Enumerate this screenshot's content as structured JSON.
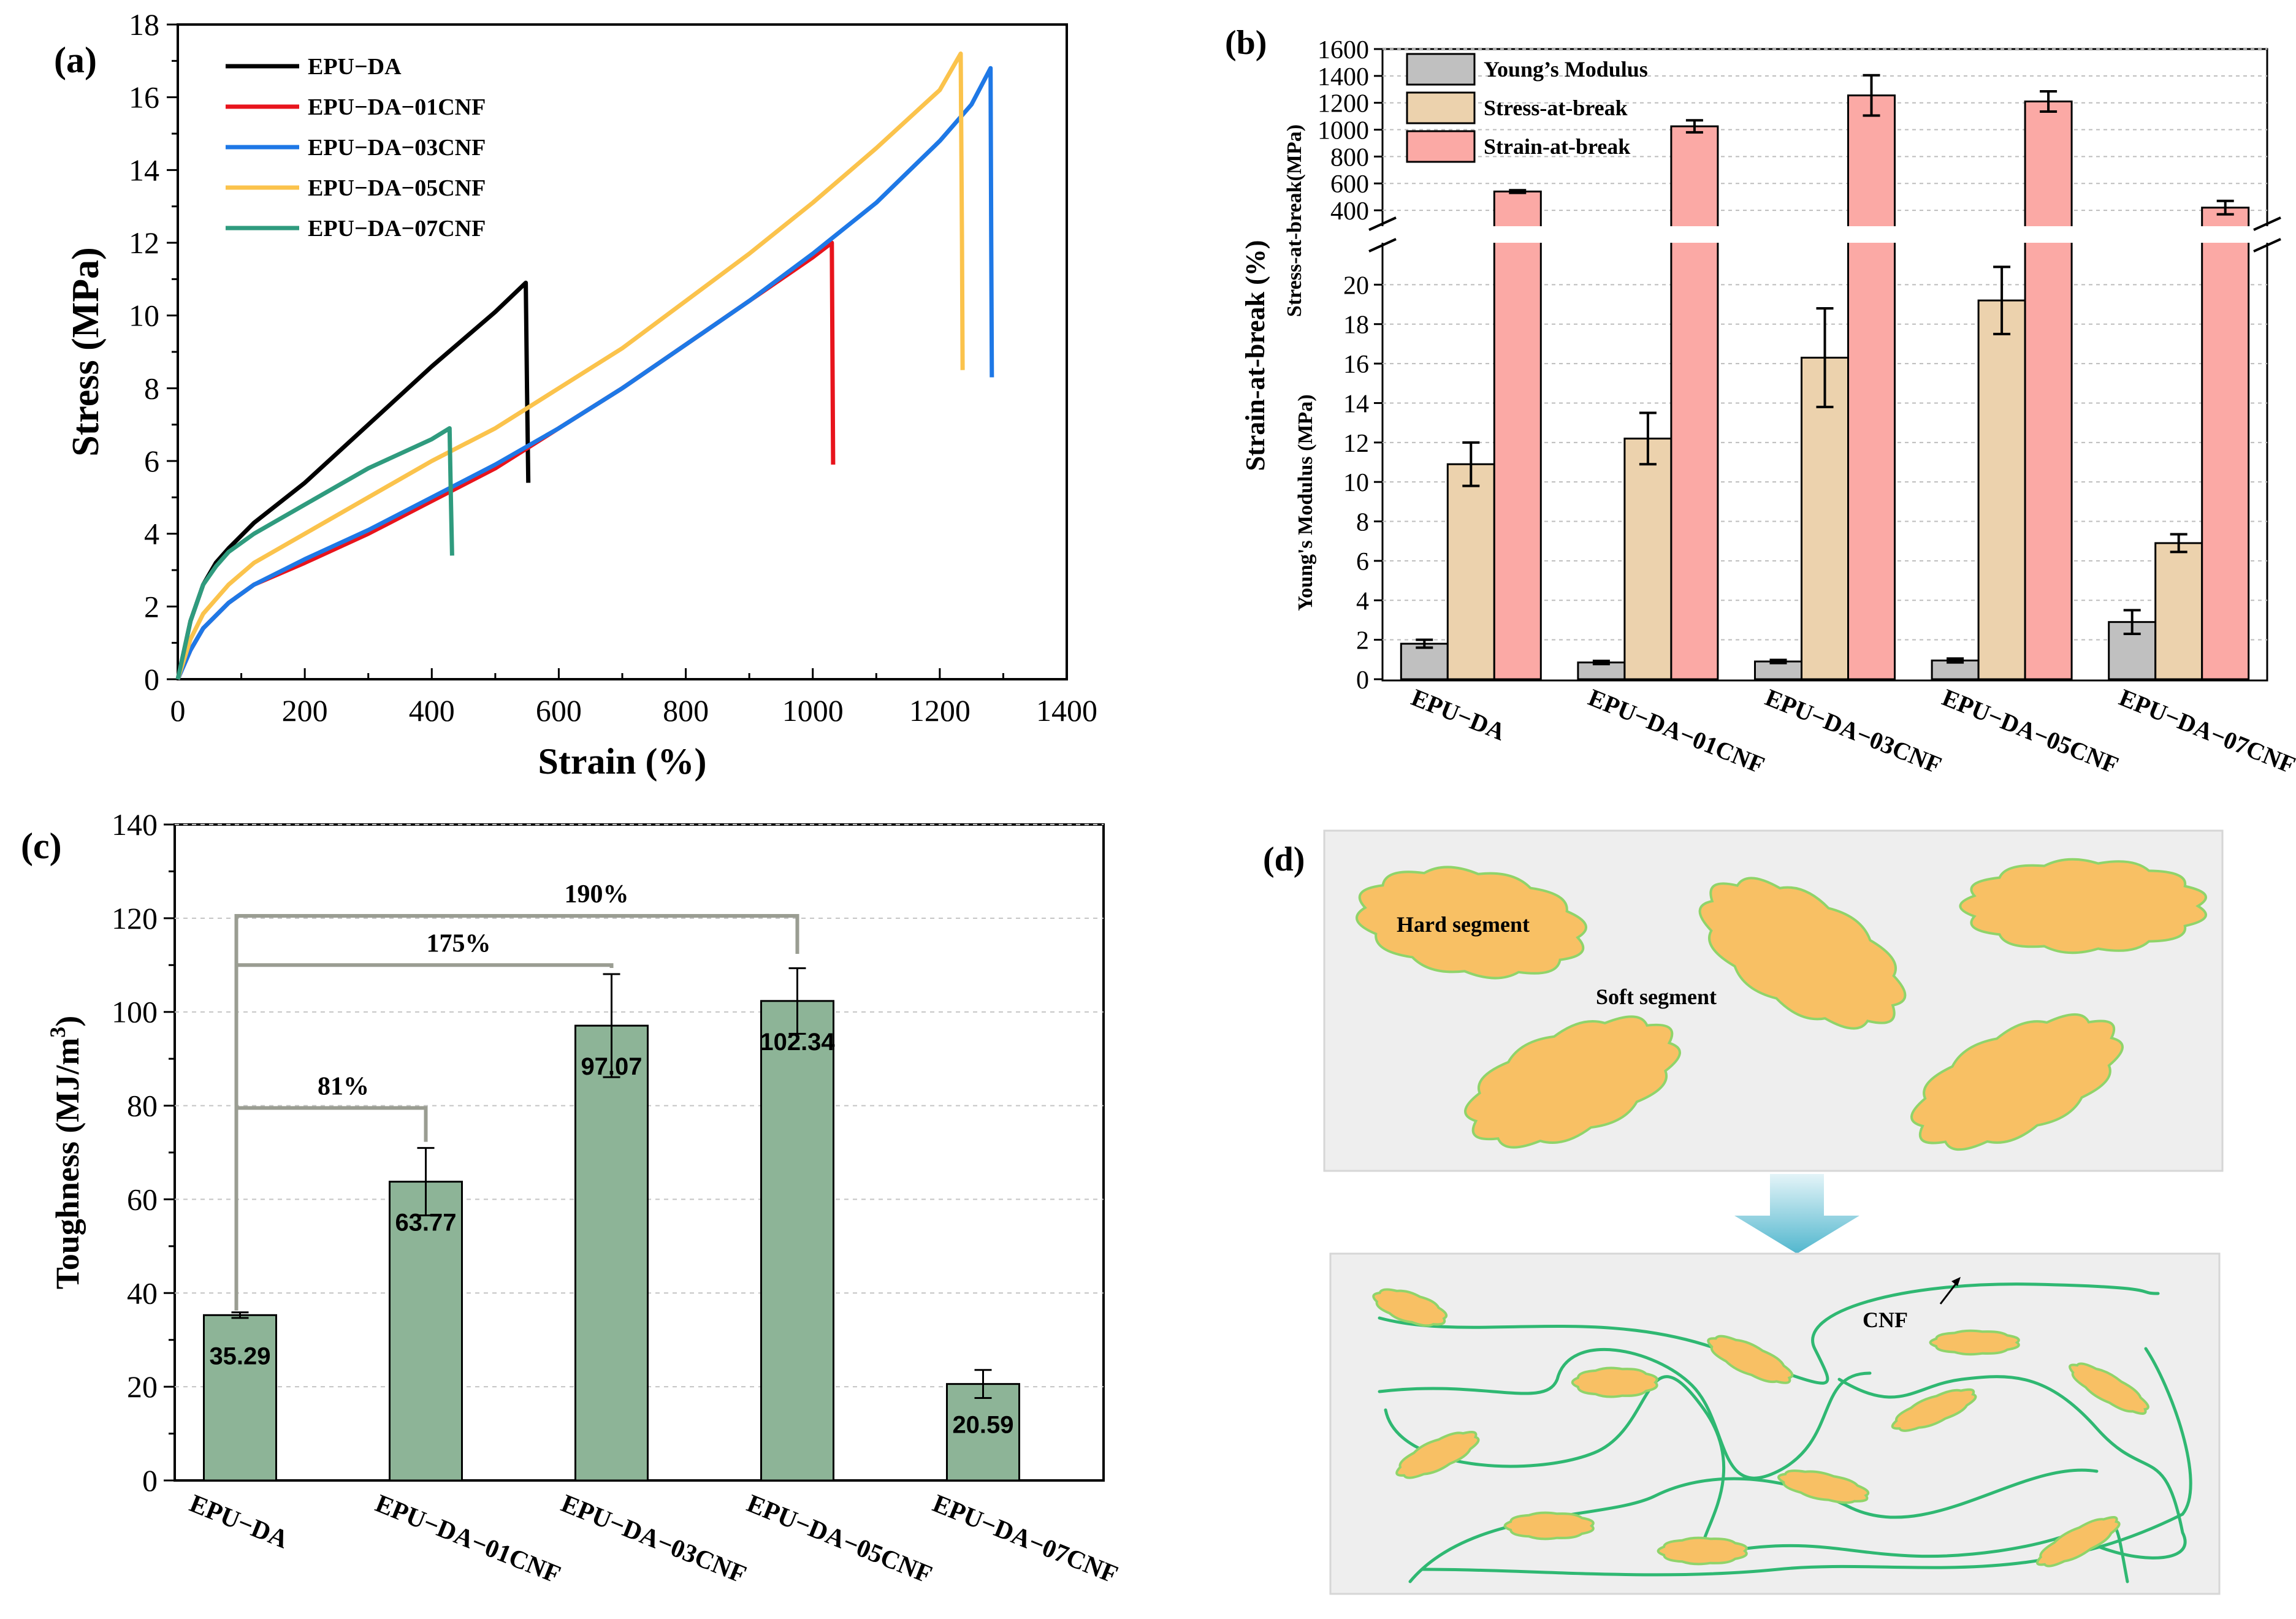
{
  "panels": {
    "a": {
      "letter": "(a)",
      "chart_data": {
        "type": "line",
        "xlabel": "Strain (%)",
        "ylabel": "Stress (MPa)",
        "xlim": [
          0,
          1400
        ],
        "ylim": [
          0,
          18
        ],
        "xticks": [
          "0",
          "200",
          "400",
          "600",
          "800",
          "1000",
          "1200",
          "1400"
        ],
        "yticks": [
          "0",
          "2",
          "4",
          "6",
          "8",
          "10",
          "12",
          "14",
          "16",
          "18"
        ],
        "legend_position": "top-left",
        "series": [
          {
            "name": "EPU−DA",
            "color": "#000000",
            "x": [
              0,
              20,
              40,
              60,
              80,
              120,
              200,
              300,
              400,
              500,
              548,
              550,
              552
            ],
            "y": [
              0,
              1.6,
              2.6,
              3.2,
              3.6,
              4.3,
              5.4,
              7.0,
              8.6,
              10.1,
              10.9,
              8.0,
              5.4
            ]
          },
          {
            "name": "EPU−DA−01CNF",
            "color": "#e8141c",
            "x": [
              0,
              20,
              40,
              80,
              120,
              200,
              300,
              400,
              500,
              600,
              700,
              800,
              900,
              1000,
              1030,
              1031,
              1032
            ],
            "y": [
              0,
              0.8,
              1.4,
              2.1,
              2.6,
              3.2,
              4.0,
              4.9,
              5.8,
              6.9,
              8.0,
              9.2,
              10.4,
              11.6,
              12.0,
              9.0,
              5.9
            ]
          },
          {
            "name": "EPU−DA−03CNF",
            "color": "#1e78e6",
            "x": [
              0,
              20,
              40,
              80,
              120,
              200,
              300,
              400,
              500,
              600,
              700,
              800,
              900,
              1000,
              1100,
              1200,
              1250,
              1280,
              1281,
              1282
            ],
            "y": [
              0,
              0.8,
              1.4,
              2.1,
              2.6,
              3.3,
              4.1,
              5.0,
              5.9,
              6.9,
              8.0,
              9.2,
              10.4,
              11.7,
              13.1,
              14.8,
              15.8,
              16.8,
              12.0,
              8.3
            ]
          },
          {
            "name": "EPU−DA−05CNF",
            "color": "#fbc34c",
            "x": [
              0,
              20,
              40,
              80,
              120,
              200,
              300,
              400,
              500,
              600,
              700,
              800,
              900,
              1000,
              1100,
              1200,
              1233,
              1235,
              1236
            ],
            "y": [
              0,
              1.1,
              1.8,
              2.6,
              3.2,
              4.0,
              5.0,
              6.0,
              6.9,
              8.0,
              9.1,
              10.4,
              11.7,
              13.1,
              14.6,
              16.2,
              17.2,
              12.0,
              8.5
            ]
          },
          {
            "name": "EPU−DA−07CNF",
            "color": "#2f9b7e",
            "x": [
              0,
              20,
              40,
              60,
              80,
              120,
              200,
              300,
              400,
              428,
              430,
              432
            ],
            "y": [
              0,
              1.6,
              2.6,
              3.1,
              3.5,
              4.0,
              4.8,
              5.8,
              6.6,
              6.9,
              5.0,
              3.4
            ]
          }
        ]
      }
    },
    "b": {
      "letter": "(b)",
      "chart_data": {
        "type": "bar",
        "ylabel": "Strain-at-break (%)",
        "ylabel_upper": "Stress-at-break(MPa)",
        "ylabel_lower": "Young's Modulus (MPa)",
        "categories": [
          "EPU−DA",
          "EPU−DA−01CNF",
          "EPU−DA−03CNF",
          "EPU−DA−05CNF",
          "EPU−DA−07CNF"
        ],
        "axis_break": {
          "lower_range": [
            0,
            22
          ],
          "upper_range": [
            300,
            1600
          ]
        },
        "yticks_lower": [
          "0",
          "2",
          "4",
          "6",
          "8",
          "10",
          "12",
          "14",
          "16",
          "18",
          "20"
        ],
        "yticks_upper": [
          "400",
          "600",
          "800",
          "1000",
          "1200",
          "1400",
          "1600"
        ],
        "legend_position": "top-left",
        "series": [
          {
            "name": "Young’s Modulus",
            "color": "#c0c0c0",
            "values": [
              1.8,
              0.85,
              0.9,
              0.95,
              2.9
            ],
            "errors": [
              0.2,
              0.08,
              0.08,
              0.1,
              0.6
            ]
          },
          {
            "name": "Stress-at-break",
            "color": "#ecd2ad",
            "values": [
              10.9,
              12.2,
              16.3,
              19.2,
              6.9
            ],
            "errors": [
              1.1,
              1.3,
              2.5,
              1.7,
              0.45
            ]
          },
          {
            "name": "Strain-at-break",
            "color": "#fba9a5",
            "values": [
              540,
              1025,
              1255,
              1210,
              420
            ],
            "errors": [
              10,
              45,
              150,
              75,
              50
            ]
          }
        ]
      }
    },
    "c": {
      "letter": "(c)",
      "chart_data": {
        "type": "bar",
        "ylabel_main": "Toughness (MJ/m",
        "ylabel_sup": "3",
        "ylabel_close": ")",
        "ylim": [
          0,
          140
        ],
        "yticks": [
          "0",
          "20",
          "40",
          "60",
          "80",
          "100",
          "120",
          "140"
        ],
        "categories": [
          "EPU−DA",
          "EPU−DA−01CNF",
          "EPU−DA−03CNF",
          "EPU−DA−05CNF",
          "EPU−DA−07CNF"
        ],
        "values": [
          35.29,
          63.77,
          97.07,
          102.34,
          20.59
        ],
        "value_labels": [
          "35.29",
          "63.77",
          "97.07",
          "102.34",
          "20.59"
        ],
        "errors": [
          0.6,
          7.2,
          11.0,
          7.0,
          3.0
        ],
        "bar_color": "#8db497",
        "comparisons": [
          {
            "label": "81%",
            "from": 0,
            "to": 1,
            "level": 79.5
          },
          {
            "label": "175%",
            "from": 0,
            "to": 2,
            "level": 110
          },
          {
            "label": "190%",
            "from": 0,
            "to": 3,
            "level": 120.5
          }
        ]
      }
    },
    "d": {
      "letter": "(d)",
      "labels": {
        "hard_segment": "Hard segment",
        "soft_segment": "Soft segment",
        "cnf": "CNF"
      },
      "colors": {
        "hard_segment": "#f8c064",
        "outline": "#8fd46a",
        "cnf": "#2fb872",
        "box": "#eeeeee",
        "arrow": "#7cc6d8"
      }
    }
  }
}
